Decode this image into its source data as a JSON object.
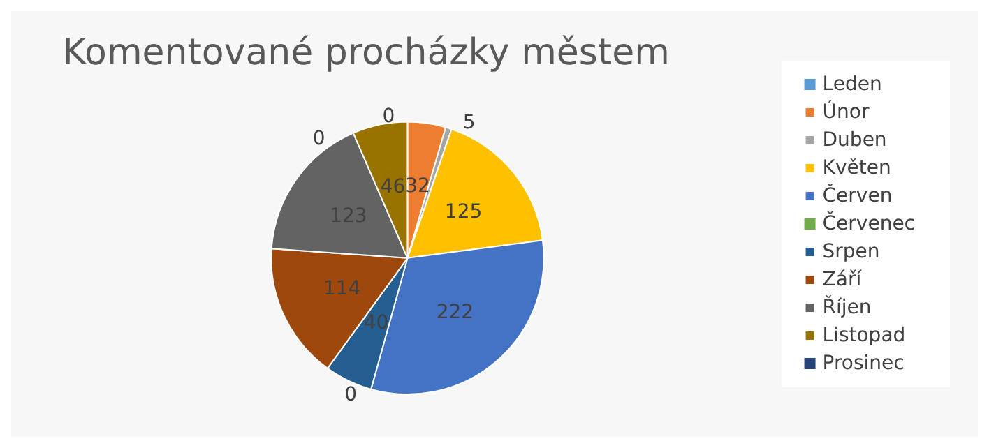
{
  "chart_data": {
    "type": "pie",
    "title": "Komentované procházky městem",
    "categories": [
      "Leden",
      "Únor",
      "Duben",
      "Květen",
      "Červen",
      "Červenec",
      "Srpen",
      "Září",
      "Říjen",
      "Listopad",
      "Prosinec"
    ],
    "values": [
      0,
      32,
      5,
      125,
      222,
      0,
      40,
      114,
      123,
      46,
      0
    ],
    "colors": [
      "#5b9bd5",
      "#ed7d31",
      "#a5a5a5",
      "#ffc000",
      "#4472c4",
      "#70ad47",
      "#255e91",
      "#9e480e",
      "#636363",
      "#997300",
      "#264478"
    ],
    "value_labels": [
      "0",
      "32",
      "5",
      "125",
      "222",
      "0",
      "40",
      "114",
      "123",
      "46",
      "0"
    ],
    "legend": "right"
  }
}
